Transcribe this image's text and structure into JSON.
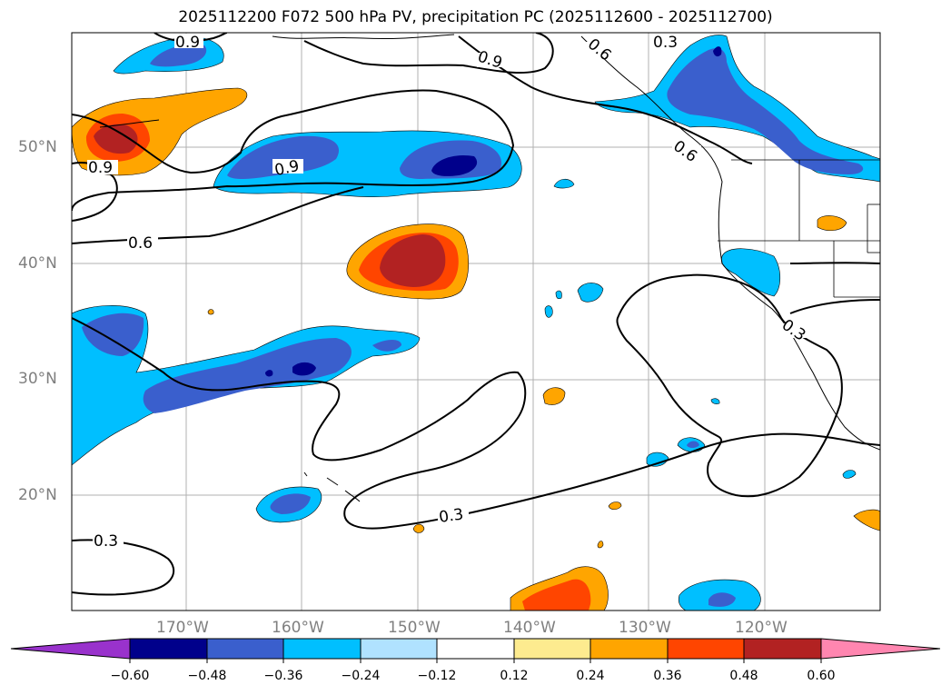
{
  "title": "2025112200 F072 500 hPa PV, precipitation PC (2025112600 - 2025112700)",
  "map": {
    "lat_labels": [
      "50°N",
      "40°N",
      "30°N",
      "20°N"
    ],
    "lon_labels": [
      "170°W",
      "160°W",
      "150°W",
      "140°W",
      "130°W",
      "120°W"
    ],
    "contour_labels": [
      "0.9",
      "0.3",
      "0.9",
      "0.6",
      "0.6",
      "0.9",
      "0.9",
      "0.6",
      "0.3",
      "0.3",
      "0.3"
    ]
  },
  "colorbar": {
    "ticks": [
      "−0.60",
      "−0.48",
      "−0.36",
      "−0.24",
      "−0.12",
      "0.12",
      "0.24",
      "0.36",
      "0.48",
      "0.60"
    ],
    "colors": [
      "#9932cc",
      "#00008b",
      "#3a5fcd",
      "#00bfff",
      "#b0e2ff",
      "#ffffff",
      "#fdeb8f",
      "#ffa500",
      "#ff4500",
      "#b22222",
      "#ff86b0"
    ]
  },
  "colors": {
    "neg_light": "#00bfff",
    "neg_mid": "#3a5fcd",
    "neg_dark": "#00008b",
    "pos_light": "#ffa500",
    "pos_mid": "#ff4500",
    "pos_dark": "#b22222"
  }
}
